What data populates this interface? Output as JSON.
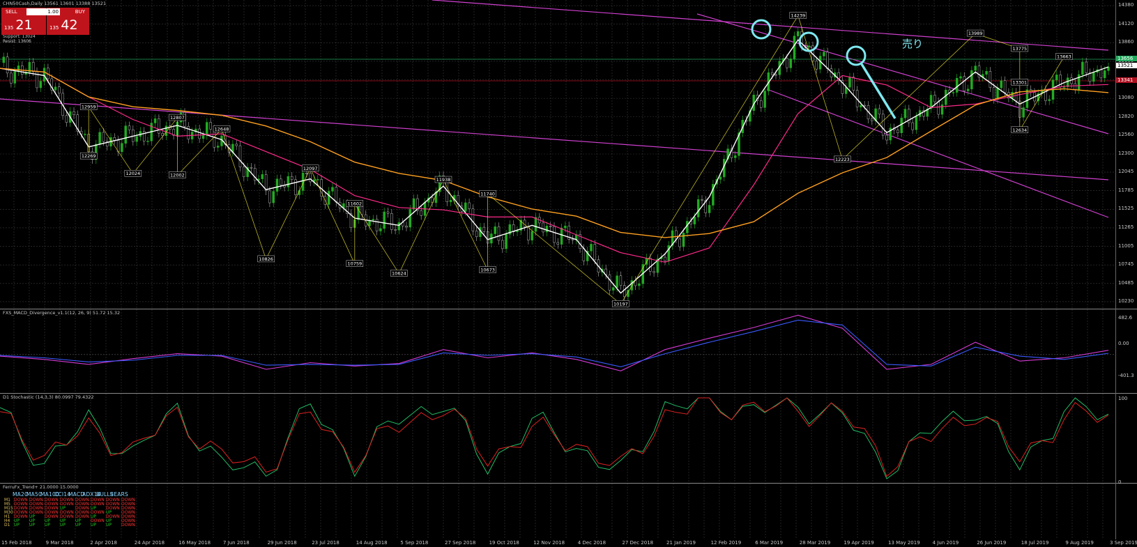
{
  "window": {
    "title": "CHN50Cash,Daily  13561 13601 13388 13521"
  },
  "trade_panel": {
    "sell_label": "SELL",
    "buy_label": "BUY",
    "lot": "1.00",
    "sell_prefix": "135",
    "sell_big": "21",
    "buy_prefix": "135",
    "buy_big": "42"
  },
  "top_labels": [
    "Support: 13024",
    "Resist: 13606"
  ],
  "annotation": {
    "text": "売り",
    "color": "#7ee8f0"
  },
  "colors": {
    "bull": "#22aa22",
    "bear": "#ffffff",
    "ma_fast": "#ffffff",
    "ma_mid": "#ff2a8a",
    "ma_slow": "#ffa020",
    "trendline": "#d040d0",
    "zigzag": "#e8e030",
    "circle": "#7ee8f0"
  },
  "chart_data": [
    {
      "type": "line",
      "panel": "price",
      "title": "CHN50Cash,Daily",
      "x": [
        "15 Feb 2018",
        "9 Mar 2018",
        "2 Apr 2018",
        "24 Apr 2018",
        "16 May 2018",
        "7 Jun 2018",
        "29 Jun 2018",
        "23 Jul 2018",
        "14 Aug 2018",
        "5 Sep 2018",
        "27 Sep 2018",
        "19 Oct 2018",
        "12 Nov 2018",
        "4 Dec 2018",
        "27 Dec 2018",
        "21 Jan 2019",
        "12 Feb 2019",
        "6 Mar 2019",
        "28 Mar 2019",
        "19 Apr 2019",
        "13 May 2019",
        "4 Jun 2019",
        "26 Jun 2019",
        "18 Jul 2019",
        "9 Aug 2019",
        "3 Sep 2019"
      ],
      "series": [
        {
          "values": [
            13500,
            13400,
            12400,
            12550,
            12700,
            12500,
            11800,
            11950,
            11400,
            11300,
            11850,
            11100,
            11300,
            11100,
            10350,
            10900,
            11700,
            13000,
            13900,
            13300,
            12600,
            12950,
            13450,
            13000,
            13300,
            13521
          ]
        }
      ],
      "swing_labels": [
        {
          "x": "2 Apr 2018",
          "value": 12269
        },
        {
          "x": "2 Apr 2018",
          "value": 12959
        },
        {
          "x": "24 Apr 2018",
          "value": 12024
        },
        {
          "x": "16 May 2018",
          "value": 12807
        },
        {
          "x": "16 May 2018",
          "value": 12002
        },
        {
          "x": "7 Jun 2018",
          "value": 12648
        },
        {
          "x": "29 Jun 2018",
          "value": 10826
        },
        {
          "x": "23 Jul 2018",
          "value": 12097
        },
        {
          "x": "14 Aug 2018",
          "value": 10759
        },
        {
          "x": "14 Aug 2018",
          "value": 11602
        },
        {
          "x": "5 Sep 2018",
          "value": 10624
        },
        {
          "x": "27 Sep 2018",
          "value": 11938
        },
        {
          "x": "19 Oct 2018",
          "value": 10673
        },
        {
          "x": "19 Oct 2018",
          "value": 11740
        },
        {
          "x": "27 Dec 2018",
          "value": 10197
        },
        {
          "x": "28 Mar 2019",
          "value": 14239
        },
        {
          "x": "19 Apr 2019",
          "value": 12223
        },
        {
          "x": "26 Jun 2019",
          "value": 13989
        },
        {
          "x": "18 Jul 2019",
          "value": 13775
        },
        {
          "x": "18 Jul 2019",
          "value": 13301
        },
        {
          "x": "18 Jul 2019",
          "value": 12634
        },
        {
          "x": "9 Aug 2019",
          "value": 13663
        }
      ],
      "yticks": [
        14380,
        14120,
        13860,
        13600,
        13340,
        13080,
        12820,
        12560,
        12300,
        12045,
        11785,
        11525,
        11265,
        11005,
        10745,
        10485,
        10230
      ],
      "price_tags": [
        "13656",
        "13521",
        "13341"
      ],
      "ylim": [
        10190,
        14400
      ],
      "grid": true
    },
    {
      "type": "line",
      "panel": "macd",
      "title": "FXS_MACD_Divergence_v1.1(12, 26, 9) 51.72 15.32",
      "yticks": [
        "482.6",
        "0.00",
        "-401.3"
      ],
      "x": [
        "15 Feb 2018",
        "9 Mar 2018",
        "2 Apr 2018",
        "24 Apr 2018",
        "16 May 2018",
        "7 Jun 2018",
        "29 Jun 2018",
        "23 Jul 2018",
        "14 Aug 2018",
        "5 Sep 2018",
        "27 Sep 2018",
        "19 Oct 2018",
        "12 Nov 2018",
        "4 Dec 2018",
        "27 Dec 2018",
        "21 Jan 2019",
        "12 Feb 2019",
        "6 Mar 2019",
        "28 Mar 2019",
        "19 Apr 2019",
        "13 May 2019",
        "4 Jun 2019",
        "26 Jun 2019",
        "18 Jul 2019",
        "9 Aug 2019",
        "3 Sep 2019"
      ],
      "series": [
        {
          "values": [
            -20,
            -60,
            -120,
            -50,
            10,
            -20,
            -180,
            -100,
            -140,
            -110,
            60,
            -40,
            20,
            -60,
            -200,
            60,
            200,
            330,
            480,
            320,
            -180,
            -120,
            150,
            -80,
            -40,
            52
          ]
        },
        {
          "values": [
            -10,
            -40,
            -90,
            -70,
            -10,
            -10,
            -130,
            -120,
            -130,
            -120,
            20,
            -10,
            10,
            -30,
            -150,
            10,
            150,
            280,
            420,
            360,
            -120,
            -140,
            90,
            -20,
            -60,
            15
          ]
        }
      ],
      "ylim": [
        -401.3,
        482.6
      ]
    },
    {
      "type": "line",
      "panel": "stochastic",
      "title": "D1 Stochastic (14,3,3) 80.0997 79.4322",
      "yticks": [
        "100",
        "0"
      ],
      "x": [
        "15 Feb 2018",
        "9 Mar 2018",
        "2 Apr 2018",
        "24 Apr 2018",
        "16 May 2018",
        "7 Jun 2018",
        "29 Jun 2018",
        "23 Jul 2018",
        "14 Aug 2018",
        "5 Sep 2018",
        "27 Sep 2018",
        "19 Oct 2018",
        "12 Nov 2018",
        "4 Dec 2018",
        "27 Dec 2018",
        "21 Jan 2019",
        "12 Feb 2019",
        "6 Mar 2019",
        "28 Mar 2019",
        "19 Apr 2019",
        "13 May 2019",
        "4 Jun 2019",
        "26 Jun 2019",
        "18 Jul 2019",
        "9 Aug 2019",
        "3 Sep 2019"
      ],
      "series": [
        {
          "values": [
            80,
            20,
            70,
            30,
            85,
            15,
            10,
            90,
            20,
            75,
            95,
            15,
            70,
            40,
            5,
            90,
            95,
            85,
            90,
            80,
            10,
            60,
            90,
            15,
            85,
            80
          ]
        },
        {
          "values": [
            75,
            30,
            60,
            35,
            80,
            25,
            15,
            80,
            25,
            65,
            90,
            25,
            60,
            45,
            10,
            80,
            92,
            88,
            85,
            82,
            20,
            50,
            85,
            25,
            75,
            79
          ]
        }
      ],
      "ylim": [
        0,
        100
      ]
    }
  ],
  "trend_panel": {
    "title": "FerruFx_Trend+ 21.0000 15.0000",
    "headers": [
      "MA20",
      "MA50",
      "MA100",
      "CCI14",
      "MACD",
      "ADX14",
      "BULLS",
      "BEARS"
    ],
    "rows": [
      {
        "tf": "M1",
        "cells": [
          "DOWN",
          "DOWN",
          "DOWN",
          "DOWN",
          "DOWN",
          "DOWN",
          "DOWN",
          "DOWN"
        ]
      },
      {
        "tf": "M5",
        "cells": [
          "DOWN",
          "DOWN",
          "DOWN",
          "DOWN",
          "DOWN",
          "DOWN",
          "DOWN",
          "DOWN"
        ]
      },
      {
        "tf": "M15",
        "cells": [
          "DOWN",
          "DOWN",
          "DOWN",
          "UP",
          "DOWN",
          "UP",
          "DOWN",
          "DOWN"
        ]
      },
      {
        "tf": "M30",
        "cells": [
          "DOWN",
          "DOWN",
          "DOWN",
          "DOWN",
          "DOWN",
          "DOWN",
          "UP",
          "DOWN"
        ]
      },
      {
        "tf": "H1",
        "cells": [
          "DOWN",
          "UP",
          "DOWN",
          "DOWN",
          "DOWN",
          "UP",
          "DOWN",
          "DOWN"
        ]
      },
      {
        "tf": "H4",
        "cells": [
          "UP",
          "UP",
          "UP",
          "UP",
          "UP",
          "DOWN",
          "UP",
          "DOWN"
        ]
      },
      {
        "tf": "D1",
        "cells": [
          "UP",
          "UP",
          "UP",
          "UP",
          "UP",
          "UP",
          "UP",
          "DOWN"
        ]
      }
    ]
  }
}
